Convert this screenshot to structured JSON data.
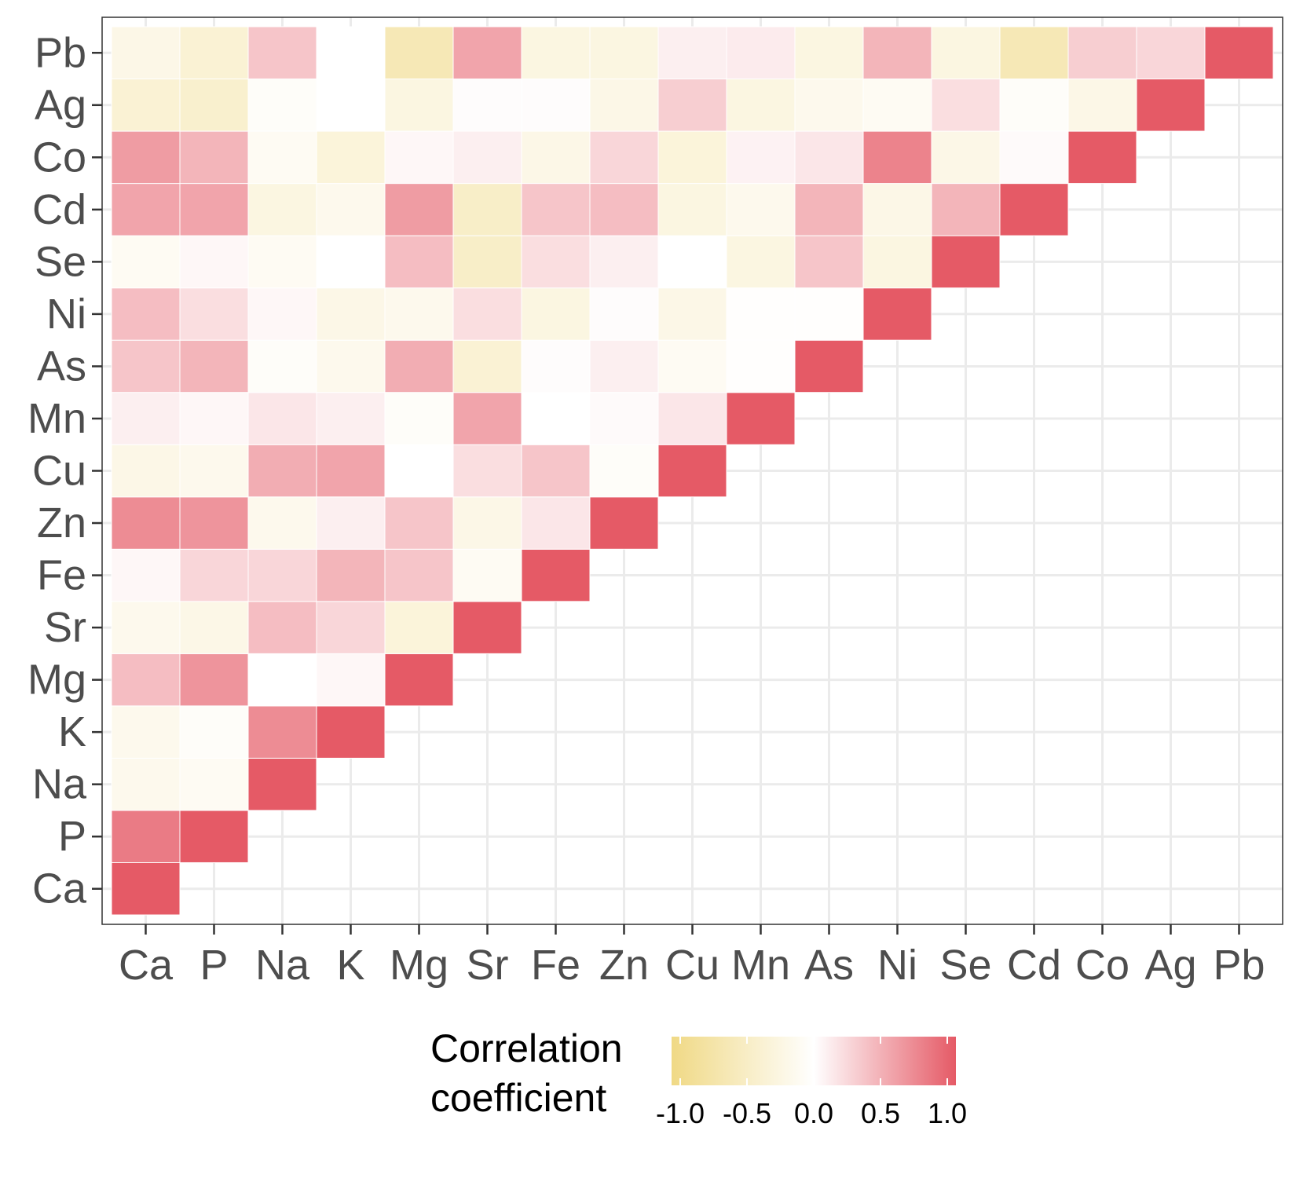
{
  "chart_data": {
    "type": "heatmap",
    "variables": [
      "Ca",
      "P",
      "Na",
      "K",
      "Mg",
      "Sr",
      "Fe",
      "Zn",
      "Cu",
      "Mn",
      "As",
      "Ni",
      "Se",
      "Cd",
      "Co",
      "Ag",
      "Pb"
    ],
    "layout": "lower-left triangle with diagonal; x categories left to right, y categories bottom to top",
    "values": [
      [
        1.0,
        0.8,
        -0.15,
        -0.15,
        0.4,
        -0.15,
        0.05,
        0.7,
        -0.2,
        0.1,
        0.35,
        0.4,
        -0.1,
        0.55,
        0.6,
        -0.35,
        -0.2
      ],
      [
        null,
        1.0,
        -0.1,
        -0.05,
        0.65,
        -0.2,
        0.25,
        0.65,
        -0.15,
        0.05,
        0.45,
        0.2,
        0.05,
        0.55,
        0.45,
        -0.4,
        -0.35
      ],
      [
        null,
        null,
        1.0,
        0.7,
        0.0,
        0.4,
        0.25,
        -0.15,
        0.5,
        0.15,
        -0.05,
        0.05,
        -0.1,
        -0.25,
        -0.1,
        -0.05,
        0.35
      ],
      [
        null,
        null,
        null,
        1.0,
        0.05,
        0.25,
        0.45,
        0.1,
        0.55,
        0.1,
        -0.15,
        -0.2,
        0.0,
        -0.15,
        -0.3,
        0.0,
        0.0
      ],
      [
        null,
        null,
        null,
        null,
        1.0,
        -0.3,
        0.35,
        0.35,
        0.0,
        -0.05,
        0.5,
        -0.15,
        0.4,
        0.6,
        0.05,
        -0.25,
        -0.6
      ],
      [
        null,
        null,
        null,
        null,
        null,
        1.0,
        -0.1,
        -0.2,
        0.2,
        0.55,
        -0.35,
        0.2,
        -0.45,
        -0.45,
        0.1,
        0.02,
        0.55
      ],
      [
        null,
        null,
        null,
        null,
        null,
        null,
        1.0,
        0.15,
        0.35,
        0.0,
        0.02,
        -0.25,
        0.2,
        0.35,
        -0.2,
        0.02,
        -0.25
      ],
      [
        null,
        null,
        null,
        null,
        null,
        null,
        null,
        1.0,
        -0.05,
        0.03,
        0.1,
        0.02,
        0.1,
        0.4,
        0.25,
        -0.2,
        -0.25
      ],
      [
        null,
        null,
        null,
        null,
        null,
        null,
        null,
        null,
        1.0,
        0.15,
        -0.1,
        -0.2,
        0.0,
        -0.25,
        -0.3,
        0.3,
        0.1
      ],
      [
        null,
        null,
        null,
        null,
        null,
        null,
        null,
        null,
        null,
        1.0,
        -0.02,
        -0.02,
        -0.25,
        -0.15,
        0.08,
        -0.25,
        0.12
      ],
      [
        null,
        null,
        null,
        null,
        null,
        null,
        null,
        null,
        null,
        null,
        1.0,
        -0.02,
        0.35,
        0.45,
        0.15,
        -0.15,
        -0.25
      ],
      [
        null,
        null,
        null,
        null,
        null,
        null,
        null,
        null,
        null,
        null,
        null,
        1.0,
        -0.25,
        -0.2,
        0.75,
        -0.1,
        0.45
      ],
      [
        null,
        null,
        null,
        null,
        null,
        null,
        null,
        null,
        null,
        null,
        null,
        null,
        1.0,
        0.45,
        -0.2,
        0.2,
        -0.25
      ],
      [
        null,
        null,
        null,
        null,
        null,
        null,
        null,
        null,
        null,
        null,
        null,
        null,
        null,
        1.0,
        0.03,
        -0.05,
        -0.6
      ],
      [
        null,
        null,
        null,
        null,
        null,
        null,
        null,
        null,
        null,
        null,
        null,
        null,
        null,
        null,
        1.0,
        -0.2,
        0.3
      ],
      [
        null,
        null,
        null,
        null,
        null,
        null,
        null,
        null,
        null,
        null,
        null,
        null,
        null,
        null,
        null,
        1.0,
        0.25
      ],
      [
        null,
        null,
        null,
        null,
        null,
        null,
        null,
        null,
        null,
        null,
        null,
        null,
        null,
        null,
        null,
        null,
        1.0
      ]
    ],
    "color_scale": {
      "low": "#f0d985",
      "mid": "#ffffff",
      "high": "#e55a66",
      "domain": [
        -1.0,
        0.0,
        1.0
      ]
    },
    "grid": true,
    "legend": {
      "title_lines": [
        "Correlation",
        "coefficient"
      ],
      "ticks": [
        "-1.0",
        "-0.5",
        "0.0",
        "0.5",
        "1.0"
      ],
      "tick_values": [
        -1.0,
        -0.5,
        0.0,
        0.5,
        1.0
      ],
      "placement": "bottom"
    }
  }
}
